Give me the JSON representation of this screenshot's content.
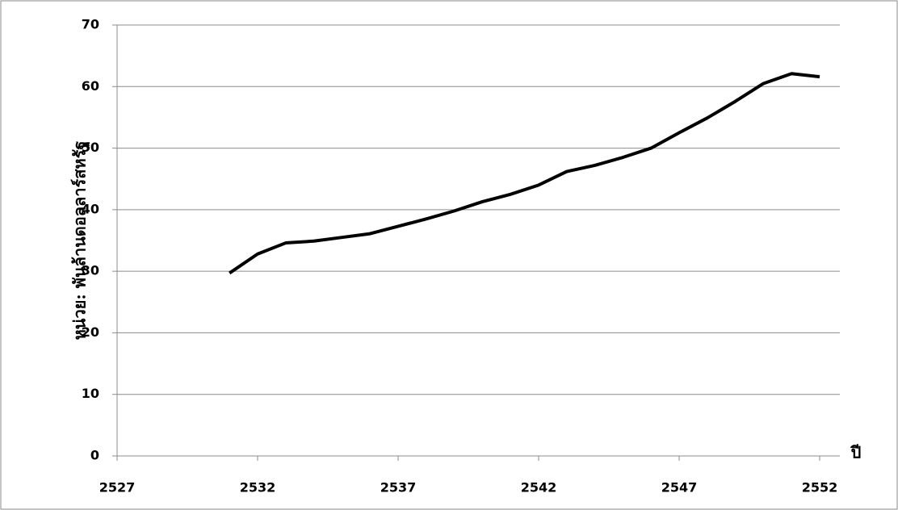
{
  "chart_data": {
    "type": "line",
    "y_label": "หน่วย: พันล้านดอลลาร์สหรัฐ",
    "x_label": "ปี",
    "x": [
      2531,
      2532,
      2533,
      2534,
      2535,
      2536,
      2537,
      2538,
      2539,
      2540,
      2541,
      2542,
      2543,
      2544,
      2545,
      2546,
      2547,
      2548,
      2549,
      2550,
      2551,
      2552
    ],
    "series": [
      {
        "color": "#000000",
        "values": [
          29.7,
          32.8,
          34.6,
          34.9,
          35.5,
          36.1,
          37.3,
          38.5,
          39.8,
          41.3,
          42.5,
          44.0,
          46.2,
          47.2,
          48.5,
          50.0,
          52.5,
          54.9,
          57.6,
          60.5,
          62.1,
          61.6
        ]
      }
    ],
    "xlim": [
      2527,
      2552
    ],
    "xticks": [
      2527,
      2532,
      2537,
      2542,
      2547,
      2552
    ],
    "ylim": [
      0,
      70
    ],
    "yticks": [
      0,
      10,
      20,
      30,
      40,
      50,
      60,
      70
    ],
    "grid": true
  }
}
